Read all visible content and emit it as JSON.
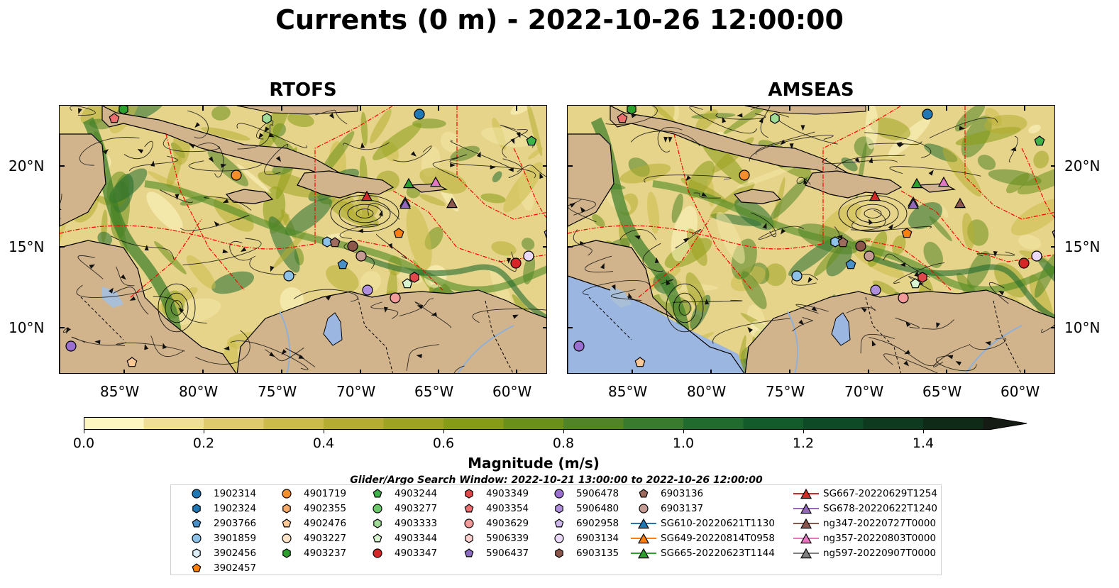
{
  "title": "Currents (0 m) - 2022-10-26 12:00:00",
  "panels": [
    {
      "title": "RTOFS",
      "landcolor": "#d2b48c",
      "ocean_extra": false
    },
    {
      "title": "AMSEAS",
      "landcolor": "#d2b48c",
      "ocean_extra": true
    }
  ],
  "axes": {
    "lon_ticks": [
      "85°W",
      "80°W",
      "75°W",
      "70°W",
      "65°W",
      "60°W"
    ],
    "lat_ticks": [
      "20°N",
      "15°N",
      "10°N"
    ]
  },
  "colorbar": {
    "label": "Magnitude (m/s)",
    "ticks": [
      "0.0",
      "0.2",
      "0.4",
      "0.6",
      "0.8",
      "1.0",
      "1.2",
      "1.4"
    ],
    "colors": [
      "#fdf6c3",
      "#efdf96",
      "#dfca6c",
      "#cbbb4a",
      "#b5ad31",
      "#9fa322",
      "#879c16",
      "#6b9019",
      "#508426",
      "#397a2e",
      "#226b2f",
      "#135b2b",
      "#0f4a26",
      "#0e3a1f",
      "#102a18",
      "#151c14"
    ]
  },
  "search_window": "Glider/Argo Search Window: 2022-10-21 13:00:00 to 2022-10-26 12:00:00",
  "legend": {
    "columns": [
      [
        {
          "label": "1902314",
          "marker": "circle",
          "color": "#1f77b4"
        },
        {
          "label": "1902324",
          "marker": "hexagon",
          "color": "#1f77b4"
        },
        {
          "label": "2903766",
          "marker": "pentagon",
          "color": "#4a90c8"
        },
        {
          "label": "3901859",
          "marker": "circle",
          "color": "#8ec1e8"
        },
        {
          "label": "3902456",
          "marker": "hexagon",
          "color": "#dbeefa"
        },
        {
          "label": "3902457",
          "marker": "pentagon",
          "color": "#ff7f0e"
        }
      ],
      [
        {
          "label": "4901719",
          "marker": "circle",
          "color": "#f28e2b"
        },
        {
          "label": "4902355",
          "marker": "hexagon",
          "color": "#f6aa6a"
        },
        {
          "label": "4902476",
          "marker": "pentagon",
          "color": "#fcc896"
        },
        {
          "label": "4903227",
          "marker": "circle",
          "color": "#fde3c8"
        },
        {
          "label": "4903237",
          "marker": "hexagon",
          "color": "#2ca02c"
        }
      ],
      [
        {
          "label": "4903244",
          "marker": "pentagon",
          "color": "#3fb34a"
        },
        {
          "label": "4903277",
          "marker": "circle",
          "color": "#6cc86a"
        },
        {
          "label": "4903333",
          "marker": "hexagon",
          "color": "#9fdc97"
        },
        {
          "label": "4903344",
          "marker": "pentagon",
          "color": "#d7f3cf"
        },
        {
          "label": "4903347",
          "marker": "circle",
          "color": "#d62728"
        }
      ],
      [
        {
          "label": "4903349",
          "marker": "hexagon",
          "color": "#e0474a"
        },
        {
          "label": "4903354",
          "marker": "pentagon",
          "color": "#ec6f6f"
        },
        {
          "label": "4903629",
          "marker": "circle",
          "color": "#f39a9a"
        },
        {
          "label": "5906339",
          "marker": "hexagon",
          "color": "#fbd0cf"
        },
        {
          "label": "5906437",
          "marker": "pentagon",
          "color": "#8b6bc4"
        }
      ],
      [
        {
          "label": "5906478",
          "marker": "circle",
          "color": "#9a6fd0"
        },
        {
          "label": "5906480",
          "marker": "hexagon",
          "color": "#b090dc"
        },
        {
          "label": "6902958",
          "marker": "pentagon",
          "color": "#cfb7ec"
        },
        {
          "label": "6903134",
          "marker": "circle",
          "color": "#ead9f8"
        },
        {
          "label": "6903135",
          "marker": "hexagon",
          "color": "#8c564b"
        }
      ],
      [
        {
          "label": "6903136",
          "marker": "pentagon",
          "color": "#9e6b5f"
        },
        {
          "label": "6903137",
          "marker": "circle",
          "color": "#c49c94"
        },
        {
          "label": "SG610-20220621T1130",
          "marker": "triangle-line",
          "color": "#1f77b4"
        },
        {
          "label": "SG649-20220814T0958",
          "marker": "triangle-line",
          "color": "#ff7f0e"
        },
        {
          "label": "SG665-20220623T1144",
          "marker": "triangle-line",
          "color": "#2ca02c"
        }
      ],
      [
        {
          "label": "SG667-20220629T1254",
          "marker": "triangle-line",
          "color": "#d62728"
        },
        {
          "label": "SG678-20220622T1240",
          "marker": "triangle-line",
          "color": "#9467bd"
        },
        {
          "label": "ng347-20220727T0000",
          "marker": "triangle-line",
          "color": "#8c564b"
        },
        {
          "label": "ng357-20220803T0000",
          "marker": "triangle-line",
          "color": "#e377c2"
        },
        {
          "label": "ng597-20220907T0000",
          "marker": "triangle-line",
          "color": "#7f7f7f"
        }
      ]
    ]
  }
}
